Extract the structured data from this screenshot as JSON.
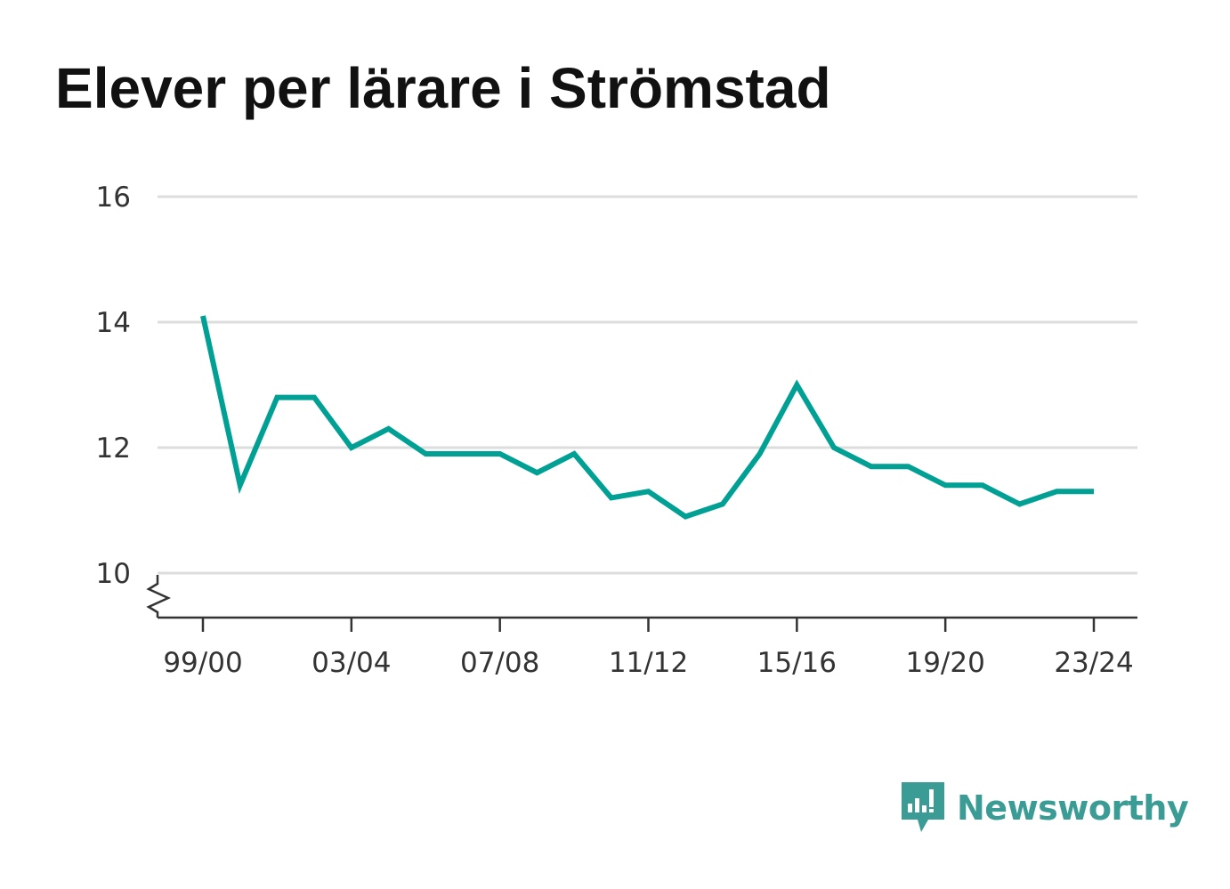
{
  "chart_data": {
    "type": "line",
    "title": "Elever per lärare i Strömstad",
    "x": [
      "99/00",
      "00/01",
      "01/02",
      "02/03",
      "03/04",
      "04/05",
      "05/06",
      "06/07",
      "07/08",
      "08/09",
      "09/10",
      "10/11",
      "11/12",
      "12/13",
      "13/14",
      "14/15",
      "15/16",
      "16/17",
      "17/18",
      "18/19",
      "19/20",
      "20/21",
      "21/22",
      "22/23",
      "23/24"
    ],
    "x_tick_labels": [
      "99/00",
      "03/04",
      "07/08",
      "11/12",
      "15/16",
      "19/20",
      "23/24"
    ],
    "series": [
      {
        "values": [
          14.1,
          11.4,
          12.8,
          12.8,
          12.0,
          12.3,
          11.9,
          11.9,
          11.9,
          11.6,
          11.9,
          11.2,
          11.3,
          10.9,
          11.1,
          11.9,
          13.0,
          12.0,
          11.7,
          11.7,
          11.4,
          11.4,
          11.1,
          11.3,
          11.3
        ],
        "color": "#00a095"
      }
    ],
    "y_ticks": [
      10,
      12,
      14,
      16
    ],
    "ylim": [
      10,
      16
    ],
    "axis_break": true,
    "grid": true,
    "legend": "none"
  },
  "brand": {
    "name": "Newsworthy",
    "color": "#3a9c94",
    "icon": "newsworthy-logo-icon"
  }
}
